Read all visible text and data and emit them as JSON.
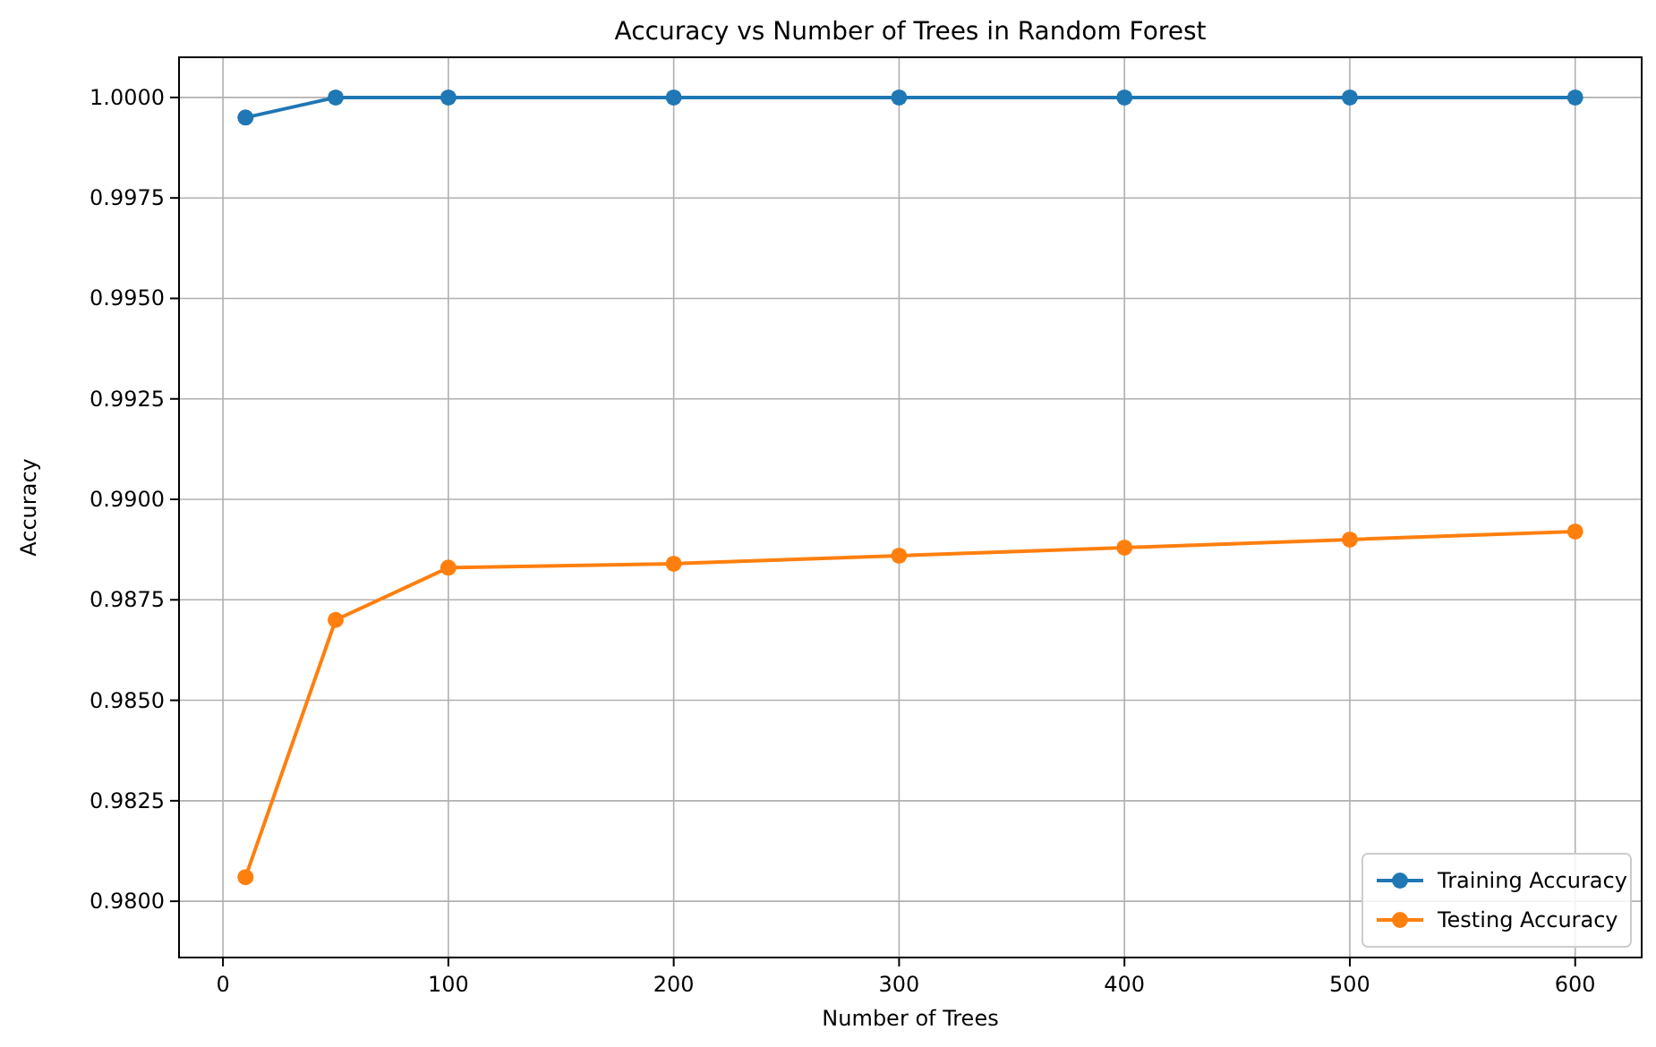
{
  "chart_data": {
    "type": "line",
    "title": "Accuracy vs Number of Trees in Random Forest",
    "xlabel": "Number of Trees",
    "ylabel": "Accuracy",
    "x": [
      10,
      50,
      100,
      200,
      300,
      400,
      500,
      600
    ],
    "series": [
      {
        "name": "Training Accuracy",
        "color": "#1f77b4",
        "values": [
          0.9995,
          1.0,
          1.0,
          1.0,
          1.0,
          1.0,
          1.0,
          1.0
        ]
      },
      {
        "name": "Testing Accuracy",
        "color": "#ff7f0e",
        "values": [
          0.9806,
          0.987,
          0.9883,
          0.9884,
          0.9886,
          0.9888,
          0.989,
          0.9892
        ]
      }
    ],
    "xlim": [
      -19.5,
      629.5
    ],
    "xticks": [
      0,
      100,
      200,
      300,
      400,
      500,
      600
    ],
    "ylim": [
      0.9786,
      1.001
    ],
    "yticks": [
      {
        "value": 0.98,
        "label": "0.9800"
      },
      {
        "value": 0.9825,
        "label": "0.9825"
      },
      {
        "value": 0.985,
        "label": "0.9850"
      },
      {
        "value": 0.9875,
        "label": "0.9875"
      },
      {
        "value": 0.99,
        "label": "0.9900"
      },
      {
        "value": 0.9925,
        "label": "0.9925"
      },
      {
        "value": 0.995,
        "label": "0.9950"
      },
      {
        "value": 0.9975,
        "label": "0.9975"
      },
      {
        "value": 1.0,
        "label": "1.0000"
      }
    ],
    "grid": true,
    "legend": "bottom right",
    "marker": "circle",
    "line_style": "solid"
  }
}
